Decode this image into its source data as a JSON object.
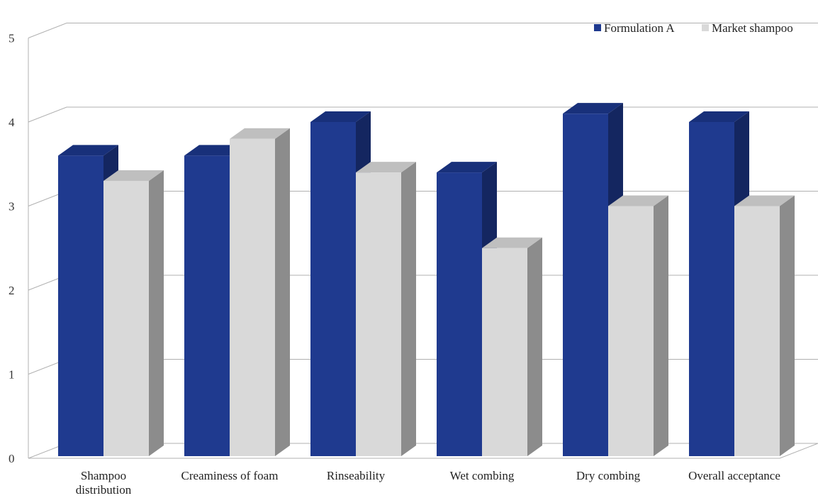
{
  "chart_data": {
    "type": "bar",
    "categories": [
      [
        "Shampoo",
        "distribution"
      ],
      [
        "Creaminess of foam"
      ],
      [
        "Rinseability"
      ],
      [
        "Wet combing"
      ],
      [
        "Dry combing"
      ],
      [
        "Overall acceptance"
      ]
    ],
    "series": [
      {
        "name": "Formulation A",
        "values": [
          3.6,
          3.6,
          4.0,
          3.4,
          4.1,
          4.0
        ]
      },
      {
        "name": "Market shampoo",
        "values": [
          3.3,
          3.8,
          3.4,
          2.5,
          3.0,
          3.0
        ]
      }
    ],
    "ylim": [
      0,
      5
    ],
    "yticks": [
      "0",
      "1",
      "2",
      "3",
      "4",
      "5"
    ],
    "grid": true,
    "legend": "top-right",
    "style": "3d-clustered-column"
  },
  "colors": {
    "Formulation A": {
      "front": "#1f3a8f",
      "top": "#18307a",
      "side": "#142660"
    },
    "Market shampoo": {
      "front": "#d9d9d9",
      "top": "#bfbfbf",
      "side": "#8c8c8c"
    },
    "grid": "#b0b0b0"
  }
}
